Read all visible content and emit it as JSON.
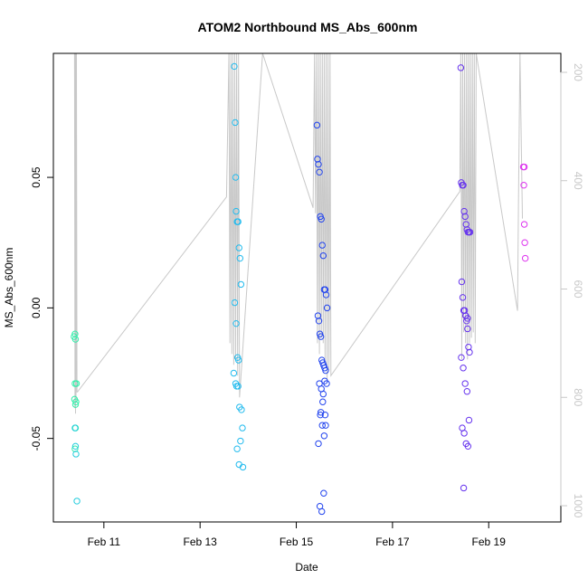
{
  "chart_data": {
    "type": "scatter",
    "title": "ATOM2 Northbound MS_Abs_600nm",
    "xlabel": "Date",
    "ylabel": "MS_Abs_600nm",
    "x_unit": "day of February",
    "xlim": [
      9.95,
      20.5
    ],
    "ylim": [
      -0.082,
      0.0975
    ],
    "x_ticks": [
      {
        "value": 11,
        "label": "Feb 11"
      },
      {
        "value": 13,
        "label": "Feb 13"
      },
      {
        "value": 15,
        "label": "Feb 15"
      },
      {
        "value": 17,
        "label": "Feb 17"
      },
      {
        "value": 19,
        "label": "Feb 19"
      }
    ],
    "y_ticks": [
      {
        "value": 0.05,
        "label": "0.05"
      },
      {
        "value": 0.0,
        "label": "0.00"
      },
      {
        "value": -0.05,
        "label": "-0.05"
      }
    ],
    "y2_axis": {
      "lim": [
        1030,
        165
      ],
      "color": "#c8c8c8",
      "ticks": [
        {
          "value": 200,
          "label": "200"
        },
        {
          "value": 400,
          "label": "400"
        },
        {
          "value": 600,
          "label": "600"
        },
        {
          "value": 800,
          "label": "800"
        },
        {
          "value": 1000,
          "label": "1000"
        }
      ]
    },
    "grid": false,
    "legend": "none",
    "series": [
      {
        "color": "#33eeaa",
        "x": [
          10.38,
          10.4,
          10.41,
          10.4,
          10.39,
          10.41,
          10.42,
          10.43,
          10.4,
          10.41
        ],
        "y": [
          -0.011,
          -0.01,
          -0.012,
          -0.029,
          -0.035,
          -0.037,
          -0.036,
          -0.029,
          -0.054,
          -0.046
        ]
      },
      {
        "color": "#22ccdd",
        "x": [
          10.4,
          10.41,
          10.42,
          10.44
        ],
        "y": [
          -0.046,
          -0.053,
          -0.056,
          -0.074
        ]
      },
      {
        "color": "#22bbee",
        "x": [
          13.71,
          13.73,
          13.74,
          13.75,
          13.77,
          13.79,
          13.81,
          13.83,
          13.85,
          13.72,
          13.75,
          13.78,
          13.8,
          13.7,
          13.74,
          13.76,
          13.79,
          13.82,
          13.86,
          13.88,
          13.84,
          13.77,
          13.89,
          13.81
        ],
        "y": [
          0.0925,
          0.071,
          0.05,
          0.037,
          0.033,
          0.033,
          0.023,
          0.019,
          0.009,
          0.002,
          -0.006,
          -0.019,
          -0.02,
          -0.025,
          -0.029,
          -0.03,
          -0.03,
          -0.038,
          -0.039,
          -0.046,
          -0.051,
          -0.054,
          -0.061,
          -0.06
        ]
      },
      {
        "color": "#2244ee",
        "x": [
          15.43,
          15.44,
          15.46,
          15.48,
          15.5,
          15.52,
          15.54,
          15.56,
          15.58,
          15.6,
          15.62,
          15.64,
          15.45,
          15.47,
          15.49,
          15.51,
          15.53,
          15.55,
          15.57,
          15.59,
          15.61,
          15.63,
          15.48,
          15.52,
          15.56,
          15.6,
          15.5,
          15.54,
          15.58,
          15.46,
          15.49,
          15.53,
          15.57,
          15.61,
          15.51,
          15.55,
          15.59
        ],
        "y": [
          0.07,
          0.057,
          0.055,
          0.052,
          0.035,
          0.034,
          0.024,
          0.02,
          0.007,
          0.007,
          0.005,
          0.0,
          -0.003,
          -0.005,
          -0.01,
          -0.011,
          -0.02,
          -0.021,
          -0.022,
          -0.023,
          -0.024,
          -0.029,
          -0.029,
          -0.031,
          -0.033,
          -0.041,
          -0.041,
          -0.045,
          -0.049,
          -0.052,
          -0.076,
          -0.078,
          -0.071,
          -0.045,
          -0.04,
          -0.036,
          -0.028
        ]
      },
      {
        "color": "#6633ee",
        "x": [
          18.42,
          18.43,
          18.45,
          18.47,
          18.49,
          18.51,
          18.53,
          18.55,
          18.57,
          18.59,
          18.61,
          18.44,
          18.46,
          18.48,
          18.5,
          18.52,
          18.54,
          18.56,
          18.58,
          18.6,
          18.43,
          18.47,
          18.51,
          18.55,
          18.59,
          18.45,
          18.49,
          18.53,
          18.57,
          18.48,
          18.52,
          18.56
        ],
        "y": [
          0.092,
          0.048,
          0.047,
          0.047,
          0.037,
          0.035,
          0.032,
          0.03,
          0.029,
          0.029,
          0.029,
          0.01,
          0.004,
          -0.001,
          -0.001,
          -0.003,
          -0.005,
          -0.008,
          -0.015,
          -0.017,
          -0.019,
          -0.023,
          -0.029,
          -0.032,
          -0.043,
          -0.046,
          -0.048,
          -0.052,
          -0.053,
          -0.069,
          -0.003,
          -0.004
        ]
      },
      {
        "color": "#dd33ee",
        "x": [
          19.72,
          19.73,
          19.74,
          19.75,
          19.76,
          19.74
        ],
        "y": [
          0.054,
          0.047,
          0.032,
          0.025,
          0.019,
          0.054
        ]
      }
    ],
    "secondary_line": {
      "color": "#c8c8c8",
      "x": [
        10.39,
        10.4,
        10.405,
        10.41,
        10.415,
        10.42,
        10.43,
        10.44,
        10.45,
        13.55,
        13.6,
        13.62,
        13.64,
        13.66,
        13.68,
        13.7,
        13.72,
        13.74,
        13.76,
        13.78,
        13.8,
        13.82,
        14.3,
        15.35,
        15.38,
        15.4,
        15.42,
        15.44,
        15.46,
        15.48,
        15.5,
        15.52,
        15.54,
        15.56,
        15.58,
        15.6,
        15.62,
        15.64,
        15.66,
        15.68,
        15.7,
        15.72,
        18.4,
        18.42,
        18.44,
        18.46,
        18.48,
        18.5,
        18.52,
        18.54,
        18.56,
        18.58,
        18.6,
        18.62,
        18.64,
        18.66,
        18.68,
        18.7,
        18.72,
        18.74,
        19.6,
        19.62,
        19.65,
        19.7
      ],
      "y2": [
        165,
        820,
        165,
        830,
        165,
        810,
        165,
        790,
        790,
        430,
        165,
        700,
        165,
        720,
        165,
        740,
        165,
        730,
        165,
        760,
        165,
        800,
        165,
        450,
        165,
        460,
        165,
        700,
        165,
        720,
        165,
        690,
        165,
        700,
        165,
        740,
        165,
        770,
        165,
        750,
        165,
        760,
        420,
        165,
        730,
        165,
        680,
        165,
        700,
        165,
        730,
        165,
        700,
        165,
        690,
        165,
        680,
        165,
        700,
        165,
        640,
        430,
        165,
        470
      ]
    }
  }
}
